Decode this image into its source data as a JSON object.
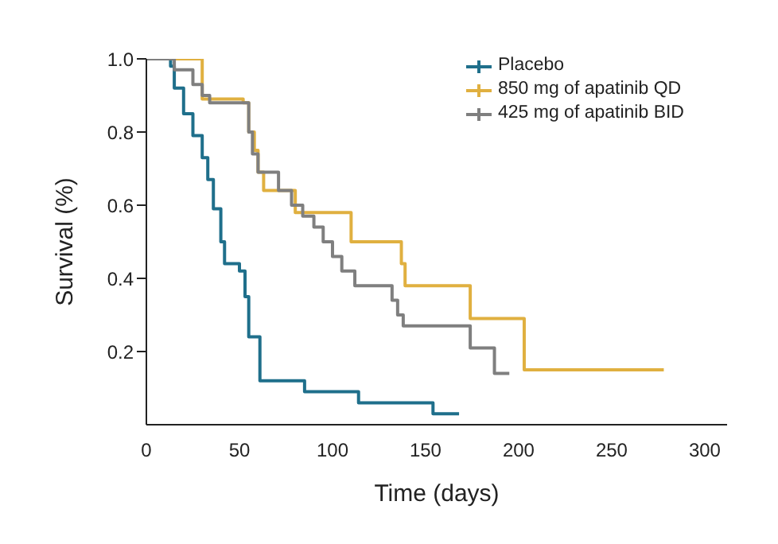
{
  "chart_data": {
    "type": "step",
    "xlabel": "Time (days)",
    "ylabel": "Survival (%)",
    "xlim": [
      0,
      312
    ],
    "xticks": [
      0,
      50,
      100,
      150,
      200,
      250,
      300
    ],
    "ylim": [
      0,
      1
    ],
    "yticks": [
      {
        "value": 0.2,
        "label": "0.2"
      },
      {
        "value": 0.4,
        "label": "0.4"
      },
      {
        "value": 0.6,
        "label": "0.6"
      },
      {
        "value": 0.8,
        "label": "0.8"
      },
      {
        "value": 1,
        "label": "1.0"
      }
    ],
    "grid": false,
    "legend": "top right",
    "marker": "none",
    "line_style": "solid",
    "series": [
      {
        "name": "Placebo",
        "color": "#1f6f8b",
        "x": [
          0,
          13,
          15,
          20,
          25,
          30,
          33,
          36,
          40,
          42,
          50,
          53,
          55,
          61,
          85,
          114,
          154,
          168
        ],
        "values": [
          1,
          0.98,
          0.92,
          0.85,
          0.79,
          0.73,
          0.67,
          0.59,
          0.5,
          0.44,
          0.42,
          0.35,
          0.24,
          0.12,
          0.09,
          0.06,
          0.03,
          0.03
        ]
      },
      {
        "name": "850 mg of apatinib QD",
        "color": "#e0b040",
        "x": [
          0,
          28,
          30,
          52,
          55,
          58,
          60,
          63,
          80,
          110,
          137,
          139,
          174,
          203,
          278
        ],
        "values": [
          1,
          1,
          0.89,
          0.88,
          0.8,
          0.75,
          0.69,
          0.64,
          0.58,
          0.5,
          0.44,
          0.38,
          0.29,
          0.15,
          0.15
        ]
      },
      {
        "name": "425 mg of apatinib BID",
        "color": "#7f7f7f",
        "x": [
          0,
          13,
          15,
          25,
          30,
          34,
          52,
          55,
          57,
          60,
          71,
          78,
          84,
          90,
          95,
          100,
          105,
          112,
          118,
          131,
          132,
          135,
          138,
          174,
          187,
          195
        ],
        "values": [
          1,
          1,
          0.97,
          0.93,
          0.9,
          0.88,
          0.88,
          0.8,
          0.74,
          0.69,
          0.64,
          0.6,
          0.57,
          0.54,
          0.5,
          0.46,
          0.42,
          0.38,
          0.38,
          0.38,
          0.34,
          0.3,
          0.27,
          0.21,
          0.14,
          0.14
        ]
      }
    ]
  }
}
